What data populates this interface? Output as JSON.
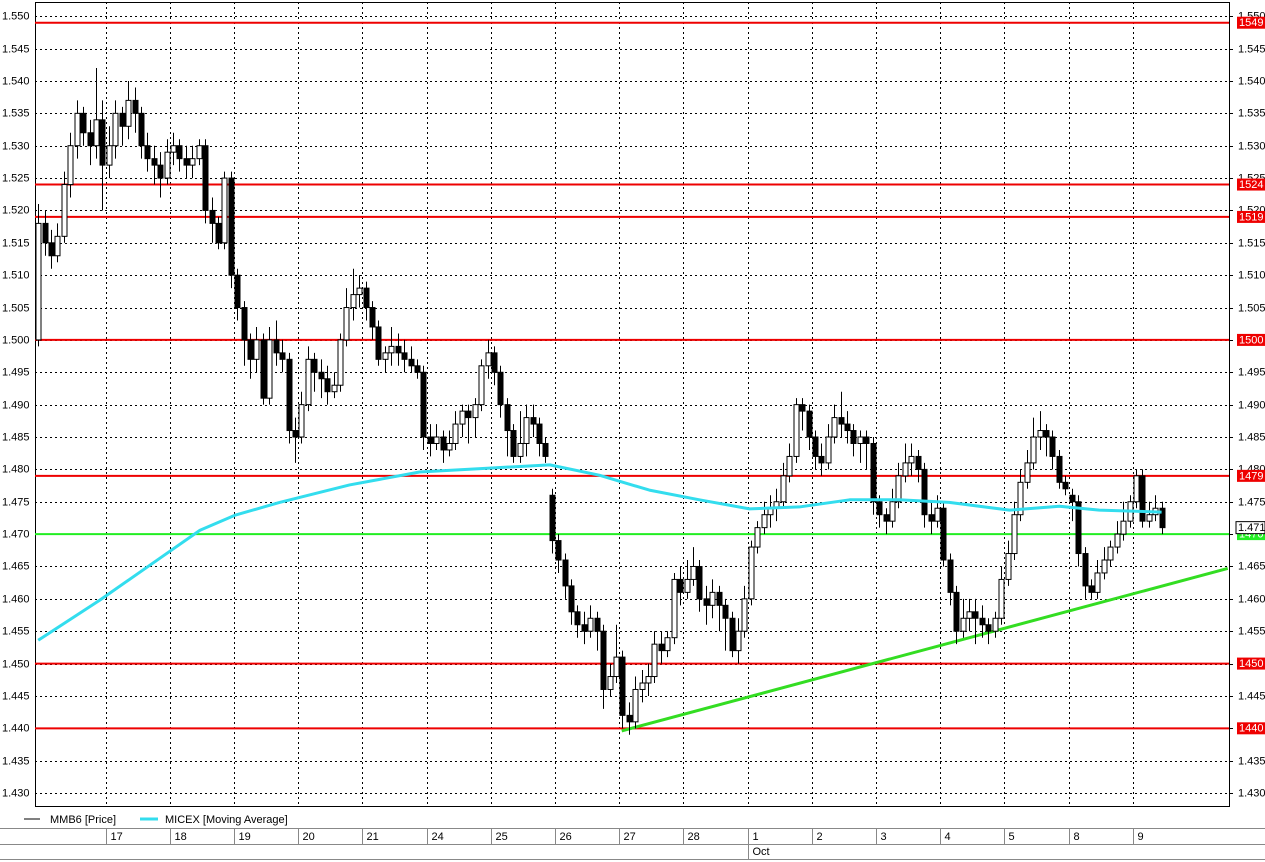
{
  "chart_data": {
    "type": "candlestick",
    "xlim": [
      -0.5,
      185.5
    ],
    "ylim": [
      1.428,
      1.5522
    ],
    "yticks": [
      {
        "value": 1.43,
        "label": "1.430"
      },
      {
        "value": 1.435,
        "label": "1.435"
      },
      {
        "value": 1.44,
        "label": "1.440"
      },
      {
        "value": 1.445,
        "label": "1.445"
      },
      {
        "value": 1.45,
        "label": "1.450"
      },
      {
        "value": 1.455,
        "label": "1.455"
      },
      {
        "value": 1.46,
        "label": "1.460"
      },
      {
        "value": 1.465,
        "label": "1.465"
      },
      {
        "value": 1.47,
        "label": "1.470"
      },
      {
        "value": 1.475,
        "label": "1.475"
      },
      {
        "value": 1.48,
        "label": "1.480"
      },
      {
        "value": 1.485,
        "label": "1.485"
      },
      {
        "value": 1.49,
        "label": "1.490"
      },
      {
        "value": 1.495,
        "label": "1.495"
      },
      {
        "value": 1.5,
        "label": "1.500"
      },
      {
        "value": 1.505,
        "label": "1.505"
      },
      {
        "value": 1.51,
        "label": "1.510"
      },
      {
        "value": 1.515,
        "label": "1.515"
      },
      {
        "value": 1.52,
        "label": "1.520"
      },
      {
        "value": 1.525,
        "label": "1.525"
      },
      {
        "value": 1.53,
        "label": "1.530"
      },
      {
        "value": 1.535,
        "label": "1.535"
      },
      {
        "value": 1.54,
        "label": "1.540"
      },
      {
        "value": 1.545,
        "label": "1.545"
      },
      {
        "value": 1.55,
        "label": "1.550"
      }
    ],
    "xticks": [
      {
        "value": 10.5,
        "label": "17"
      },
      {
        "value": 20.5,
        "label": "18"
      },
      {
        "value": 30.5,
        "label": "19"
      },
      {
        "value": 40.5,
        "label": "20"
      },
      {
        "value": 50.5,
        "label": "21"
      },
      {
        "value": 60.5,
        "label": "24"
      },
      {
        "value": 70.5,
        "label": "25"
      },
      {
        "value": 80.5,
        "label": "26"
      },
      {
        "value": 90.5,
        "label": "27"
      },
      {
        "value": 100.5,
        "label": "28"
      },
      {
        "value": 110.5,
        "label": "1"
      },
      {
        "value": 120.5,
        "label": "2"
      },
      {
        "value": 130.5,
        "label": "3"
      },
      {
        "value": 140.5,
        "label": "4"
      },
      {
        "value": 150.5,
        "label": "5"
      },
      {
        "value": 160.5,
        "label": "8"
      },
      {
        "value": 170.5,
        "label": "9"
      }
    ],
    "month_ticks": [
      {
        "value": 110.5,
        "label": "Oct"
      }
    ],
    "grid": true,
    "series": [
      {
        "name": "MMB6 [Price]",
        "color": "#000000",
        "up_color": "#ffffff",
        "down_color": "#000000",
        "open": [
          1.5,
          1.518,
          1.515,
          1.513,
          1.516,
          1.524,
          1.53,
          1.535,
          1.532,
          1.53,
          1.534,
          1.527,
          1.53,
          1.535,
          1.533,
          1.537,
          1.535,
          1.53,
          1.528,
          1.527,
          1.525,
          1.529,
          1.53,
          1.528,
          1.527,
          1.528,
          1.53,
          1.52,
          1.518,
          1.515,
          1.525,
          1.51,
          1.505,
          1.5,
          1.497,
          1.5,
          1.491,
          1.5,
          1.498,
          1.497,
          1.486,
          1.485,
          1.49,
          1.497,
          1.495,
          1.494,
          1.492,
          1.493,
          1.5,
          1.505,
          1.507,
          1.508,
          1.505,
          1.502,
          1.497,
          1.498,
          1.499,
          1.498,
          1.497,
          1.496,
          1.495,
          1.485,
          1.484,
          1.485,
          1.483,
          1.484,
          1.487,
          1.489,
          1.488,
          1.49,
          1.496,
          1.498,
          1.495,
          1.49,
          1.486,
          1.482,
          1.484,
          1.488,
          1.487,
          1.484,
          1.476,
          1.469,
          1.466,
          1.462,
          1.458,
          1.456,
          1.455,
          1.457,
          1.455,
          1.446,
          1.448,
          1.451,
          1.442,
          1.441,
          1.446,
          1.447,
          1.448,
          1.453,
          1.452,
          1.454,
          1.463,
          1.461,
          1.463,
          1.465,
          1.46,
          1.459,
          1.461,
          1.459,
          1.457,
          1.452,
          1.455,
          1.46,
          1.468,
          1.471,
          1.473,
          1.474,
          1.475,
          1.479,
          1.482,
          1.49,
          1.489,
          1.485,
          1.482,
          1.481,
          1.485,
          1.488,
          1.487,
          1.486,
          1.484,
          1.485,
          1.484,
          1.475,
          1.473,
          1.472,
          1.475,
          1.479,
          1.481,
          1.482,
          1.48,
          1.473,
          1.472,
          1.474,
          1.466,
          1.461,
          1.455,
          1.457,
          1.458,
          1.457,
          1.456,
          1.455,
          1.457,
          1.463,
          1.467,
          1.473,
          1.478,
          1.481,
          1.485,
          1.486,
          1.485,
          1.482,
          1.478,
          1.476,
          1.475,
          1.467,
          1.462,
          1.461,
          1.464,
          1.466,
          1.468,
          1.47,
          1.472,
          1.475,
          1.479,
          1.472,
          1.473,
          1.474
        ],
        "high": [
          1.521,
          1.52,
          1.517,
          1.518,
          1.526,
          1.532,
          1.537,
          1.536,
          1.534,
          1.542,
          1.537,
          1.533,
          1.537,
          1.536,
          1.54,
          1.539,
          1.536,
          1.532,
          1.53,
          1.529,
          1.531,
          1.532,
          1.531,
          1.53,
          1.53,
          1.531,
          1.531,
          1.522,
          1.519,
          1.526,
          1.526,
          1.511,
          1.506,
          1.501,
          1.502,
          1.501,
          1.502,
          1.503,
          1.5,
          1.498,
          1.488,
          1.492,
          1.499,
          1.498,
          1.497,
          1.496,
          1.495,
          1.501,
          1.508,
          1.511,
          1.51,
          1.509,
          1.506,
          1.503,
          1.499,
          1.502,
          1.501,
          1.5,
          1.499,
          1.497,
          1.496,
          1.487,
          1.487,
          1.486,
          1.486,
          1.489,
          1.49,
          1.49,
          1.491,
          1.497,
          1.5,
          1.499,
          1.496,
          1.491,
          1.487,
          1.489,
          1.49,
          1.49,
          1.488,
          1.485,
          1.477,
          1.47,
          1.467,
          1.463,
          1.459,
          1.458,
          1.459,
          1.458,
          1.456,
          1.45,
          1.456,
          1.452,
          1.444,
          1.448,
          1.449,
          1.45,
          1.455,
          1.455,
          1.455,
          1.464,
          1.465,
          1.466,
          1.468,
          1.466,
          1.462,
          1.463,
          1.462,
          1.46,
          1.458,
          1.457,
          1.462,
          1.469,
          1.472,
          1.475,
          1.476,
          1.477,
          1.481,
          1.484,
          1.491,
          1.491,
          1.49,
          1.486,
          1.484,
          1.487,
          1.49,
          1.492,
          1.489,
          1.487,
          1.486,
          1.486,
          1.485,
          1.476,
          1.474,
          1.477,
          1.481,
          1.484,
          1.484,
          1.483,
          1.481,
          1.475,
          1.476,
          1.475,
          1.467,
          1.462,
          1.46,
          1.46,
          1.46,
          1.459,
          1.457,
          1.458,
          1.465,
          1.469,
          1.475,
          1.48,
          1.483,
          1.488,
          1.489,
          1.487,
          1.486,
          1.483,
          1.479,
          1.477,
          1.476,
          1.468,
          1.463,
          1.466,
          1.468,
          1.469,
          1.472,
          1.475,
          1.476,
          1.48,
          1.48,
          1.475,
          1.476,
          1.475
        ],
        "low": [
          1.499,
          1.513,
          1.511,
          1.512,
          1.515,
          1.522,
          1.528,
          1.53,
          1.527,
          1.528,
          1.52,
          1.525,
          1.528,
          1.53,
          1.531,
          1.532,
          1.528,
          1.526,
          1.524,
          1.522,
          1.524,
          1.527,
          1.526,
          1.525,
          1.525,
          1.527,
          1.518,
          1.515,
          1.514,
          1.514,
          1.508,
          1.503,
          1.496,
          1.494,
          1.495,
          1.49,
          1.49,
          1.496,
          1.495,
          1.484,
          1.481,
          1.484,
          1.489,
          1.492,
          1.491,
          1.49,
          1.491,
          1.492,
          1.499,
          1.503,
          1.505,
          1.503,
          1.5,
          1.496,
          1.495,
          1.496,
          1.496,
          1.495,
          1.495,
          1.494,
          1.483,
          1.482,
          1.483,
          1.481,
          1.482,
          1.483,
          1.485,
          1.484,
          1.485,
          1.489,
          1.494,
          1.493,
          1.488,
          1.482,
          1.481,
          1.481,
          1.482,
          1.485,
          1.482,
          1.481,
          1.467,
          1.464,
          1.46,
          1.456,
          1.454,
          1.453,
          1.454,
          1.452,
          1.443,
          1.445,
          1.447,
          1.44,
          1.439,
          1.44,
          1.444,
          1.445,
          1.447,
          1.45,
          1.451,
          1.453,
          1.459,
          1.46,
          1.462,
          1.458,
          1.456,
          1.457,
          1.455,
          1.452,
          1.451,
          1.45,
          1.454,
          1.459,
          1.467,
          1.47,
          1.471,
          1.472,
          1.474,
          1.478,
          1.481,
          1.486,
          1.483,
          1.48,
          1.479,
          1.48,
          1.484,
          1.485,
          1.484,
          1.482,
          1.481,
          1.48,
          1.473,
          1.471,
          1.47,
          1.471,
          1.474,
          1.478,
          1.479,
          1.478,
          1.471,
          1.47,
          1.471,
          1.465,
          1.459,
          1.453,
          1.454,
          1.455,
          1.453,
          1.454,
          1.453,
          1.454,
          1.456,
          1.462,
          1.466,
          1.472,
          1.477,
          1.48,
          1.483,
          1.482,
          1.48,
          1.477,
          1.476,
          1.472,
          1.465,
          1.46,
          1.46,
          1.46,
          1.463,
          1.465,
          1.467,
          1.469,
          1.471,
          1.474,
          1.471,
          1.471,
          1.472,
          1.47
        ],
        "close": [
          1.518,
          1.515,
          1.513,
          1.516,
          1.524,
          1.53,
          1.535,
          1.532,
          1.53,
          1.534,
          1.527,
          1.53,
          1.535,
          1.533,
          1.537,
          1.535,
          1.53,
          1.528,
          1.527,
          1.525,
          1.529,
          1.53,
          1.528,
          1.527,
          1.528,
          1.53,
          1.52,
          1.518,
          1.515,
          1.525,
          1.51,
          1.505,
          1.5,
          1.497,
          1.5,
          1.491,
          1.5,
          1.498,
          1.497,
          1.486,
          1.485,
          1.49,
          1.497,
          1.495,
          1.494,
          1.492,
          1.493,
          1.5,
          1.505,
          1.507,
          1.508,
          1.505,
          1.502,
          1.497,
          1.498,
          1.499,
          1.498,
          1.497,
          1.496,
          1.495,
          1.485,
          1.484,
          1.485,
          1.483,
          1.484,
          1.487,
          1.489,
          1.488,
          1.49,
          1.496,
          1.498,
          1.495,
          1.49,
          1.486,
          1.482,
          1.484,
          1.488,
          1.487,
          1.484,
          1.482,
          1.469,
          1.466,
          1.462,
          1.458,
          1.456,
          1.455,
          1.457,
          1.455,
          1.446,
          1.448,
          1.451,
          1.442,
          1.441,
          1.446,
          1.447,
          1.448,
          1.453,
          1.452,
          1.454,
          1.463,
          1.461,
          1.463,
          1.465,
          1.46,
          1.459,
          1.461,
          1.459,
          1.457,
          1.452,
          1.455,
          1.46,
          1.468,
          1.471,
          1.473,
          1.474,
          1.475,
          1.479,
          1.482,
          1.49,
          1.489,
          1.485,
          1.482,
          1.481,
          1.485,
          1.488,
          1.487,
          1.486,
          1.484,
          1.485,
          1.484,
          1.475,
          1.473,
          1.472,
          1.475,
          1.479,
          1.481,
          1.482,
          1.48,
          1.473,
          1.472,
          1.474,
          1.466,
          1.461,
          1.455,
          1.457,
          1.458,
          1.457,
          1.456,
          1.455,
          1.457,
          1.463,
          1.467,
          1.473,
          1.478,
          1.481,
          1.485,
          1.486,
          1.485,
          1.482,
          1.478,
          1.477,
          1.475,
          1.467,
          1.462,
          1.461,
          1.464,
          1.466,
          1.468,
          1.47,
          1.472,
          1.475,
          1.479,
          1.472,
          1.473,
          1.474,
          1.471
        ]
      },
      {
        "name": "MICEX [Moving Average]",
        "color": "#33ddee",
        "line": true,
        "x": [
          0,
          9.6,
          17.4,
          25.2,
          30.6,
          37.6,
          48.5,
          59.4,
          70.3,
          79.7,
          87.4,
          95.2,
          103,
          110.8,
          118.6,
          126.4,
          134.1,
          141.9,
          151.3,
          159.1,
          165.3,
          175
        ],
        "values": [
          1.4536,
          1.4598,
          1.4652,
          1.4706,
          1.4729,
          1.4749,
          1.4776,
          1.4796,
          1.4802,
          1.4807,
          1.4791,
          1.4768,
          1.4753,
          1.4739,
          1.4742,
          1.4753,
          1.4753,
          1.4749,
          1.4737,
          1.4743,
          1.4737,
          1.4734
        ]
      }
    ],
    "trendline": {
      "color": "#33dd22",
      "x": [
        90.9,
        185.3
      ],
      "values": [
        1.4396,
        1.4647
      ]
    },
    "levels": [
      {
        "value": 1.549,
        "label": "1549",
        "color": "#ee0000"
      },
      {
        "value": 1.524,
        "label": "1524",
        "color": "#ee0000"
      },
      {
        "value": 1.519,
        "label": "1519",
        "color": "#ee0000"
      },
      {
        "value": 1.5,
        "label": "1500",
        "color": "#ee0000"
      },
      {
        "value": 1.479,
        "label": "1479",
        "color": "#ee0000"
      },
      {
        "value": 1.47,
        "label": "1470",
        "color": "#22ee22"
      },
      {
        "value": 1.45,
        "label": "1450",
        "color": "#ee0000"
      },
      {
        "value": 1.44,
        "label": "1440",
        "color": "#ee0000"
      }
    ],
    "last_price": {
      "value": 1.471,
      "label": "1.471"
    }
  }
}
